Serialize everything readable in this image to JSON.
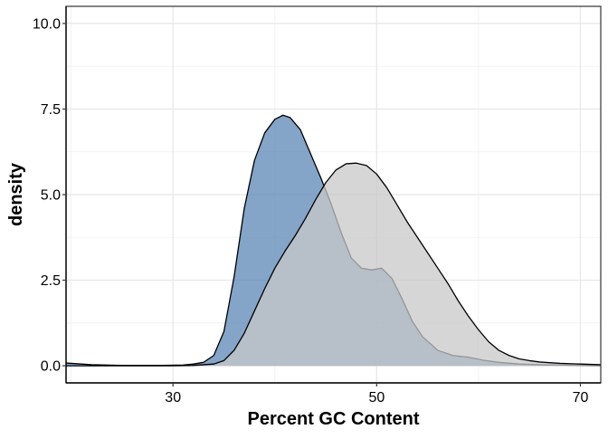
{
  "chart_data": {
    "type": "area",
    "title": "",
    "xlabel": "Percent GC Content",
    "ylabel": "density",
    "xlim": [
      19.5,
      72
    ],
    "ylim": [
      -0.5,
      10.5
    ],
    "x_ticks": [
      30,
      50,
      70
    ],
    "y_ticks": [
      0.0,
      2.5,
      5.0,
      7.5,
      10.0
    ],
    "x_tick_labels": [
      "30",
      "50",
      "70"
    ],
    "y_tick_labels": [
      "0.0",
      "2.5",
      "5.0",
      "7.5",
      "10.0"
    ],
    "grid": true,
    "legend": "none",
    "series": [
      {
        "fill": "#5b86b5",
        "stroke": "#000000",
        "points": [
          [
            19.5,
            0.08
          ],
          [
            22,
            0.03
          ],
          [
            25,
            0.01
          ],
          [
            29,
            0.01
          ],
          [
            31,
            0.02
          ],
          [
            32,
            0.05
          ],
          [
            33,
            0.1
          ],
          [
            34,
            0.3
          ],
          [
            35,
            1.0
          ],
          [
            36,
            2.6
          ],
          [
            37,
            4.6
          ],
          [
            38,
            6.0
          ],
          [
            39,
            6.8
          ],
          [
            40,
            7.2
          ],
          [
            40.8,
            7.32
          ],
          [
            41.5,
            7.25
          ],
          [
            42.5,
            6.9
          ],
          [
            43.5,
            6.2
          ],
          [
            44.5,
            5.5
          ],
          [
            45.5,
            4.75
          ],
          [
            46.5,
            3.9
          ],
          [
            47.5,
            3.15
          ],
          [
            48.5,
            2.85
          ],
          [
            49.5,
            2.8
          ],
          [
            50.5,
            2.85
          ],
          [
            51.5,
            2.55
          ],
          [
            52.5,
            1.95
          ],
          [
            53.5,
            1.3
          ],
          [
            54.5,
            0.85
          ],
          [
            56,
            0.45
          ],
          [
            57.5,
            0.3
          ],
          [
            59,
            0.25
          ],
          [
            60.5,
            0.16
          ],
          [
            62,
            0.1
          ],
          [
            64,
            0.05
          ],
          [
            66,
            0.03
          ],
          [
            68,
            0.02
          ],
          [
            72,
            0.01
          ]
        ]
      },
      {
        "fill": "#c8c8c8",
        "stroke": "#000000",
        "points": [
          [
            19.5,
            0.0
          ],
          [
            30,
            0.0
          ],
          [
            32,
            0.01
          ],
          [
            34,
            0.05
          ],
          [
            35,
            0.15
          ],
          [
            36,
            0.45
          ],
          [
            37,
            0.95
          ],
          [
            38,
            1.6
          ],
          [
            39,
            2.25
          ],
          [
            40,
            2.85
          ],
          [
            41,
            3.35
          ],
          [
            42,
            3.8
          ],
          [
            43,
            4.3
          ],
          [
            44,
            4.85
          ],
          [
            45,
            5.35
          ],
          [
            46,
            5.72
          ],
          [
            47,
            5.9
          ],
          [
            48,
            5.92
          ],
          [
            49,
            5.85
          ],
          [
            50,
            5.6
          ],
          [
            51,
            5.2
          ],
          [
            52,
            4.7
          ],
          [
            53,
            4.2
          ],
          [
            54,
            3.75
          ],
          [
            55,
            3.3
          ],
          [
            56,
            2.85
          ],
          [
            57,
            2.4
          ],
          [
            58,
            1.9
          ],
          [
            59,
            1.45
          ],
          [
            60,
            1.05
          ],
          [
            61,
            0.7
          ],
          [
            62,
            0.45
          ],
          [
            63,
            0.3
          ],
          [
            64,
            0.2
          ],
          [
            65,
            0.15
          ],
          [
            66,
            0.11
          ],
          [
            68,
            0.07
          ],
          [
            70,
            0.05
          ],
          [
            72,
            0.03
          ]
        ]
      }
    ]
  }
}
